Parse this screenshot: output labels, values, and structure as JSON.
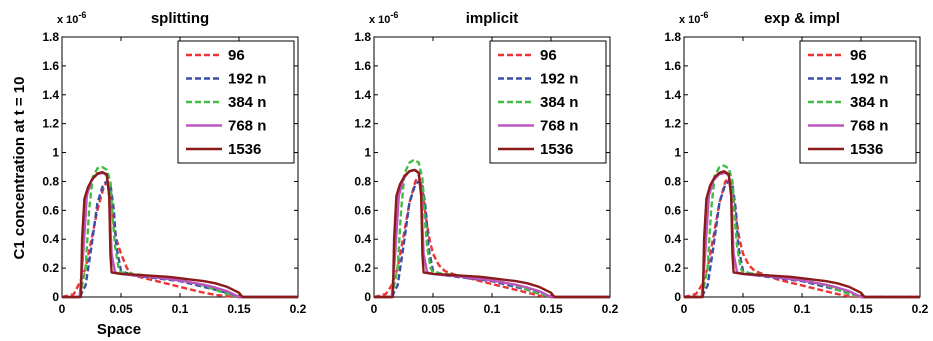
{
  "figure": {
    "ylabel": "C1 concentration at t = 10",
    "xlabel": "Space",
    "multiplier": "x 10",
    "multiplier_exp": "-6"
  },
  "chart_data": [
    {
      "type": "line",
      "title": "splitting",
      "xlabel": "Space",
      "ylabel": "C1 concentration at t = 10",
      "xlim": [
        0,
        0.2
      ],
      "ylim": [
        0,
        1.8
      ],
      "xticks": [
        "0",
        "0.05",
        "0.1",
        "0.15",
        "0.2"
      ],
      "yticks": [
        "0",
        "0.2",
        "0.4",
        "0.6",
        "0.8",
        "1",
        "1.2",
        "1.4",
        "1.6",
        "1.8"
      ],
      "legend_position": "top-right",
      "series": [
        {
          "name": "96",
          "color": "#ee3333",
          "dash": "dashed",
          "x": [
            0,
            0.01,
            0.015,
            0.02,
            0.025,
            0.03,
            0.035,
            0.038,
            0.041,
            0.043,
            0.046,
            0.05,
            0.055,
            0.06,
            0.07,
            0.08,
            0.09,
            0.1,
            0.11,
            0.12,
            0.13,
            0.14,
            0.15,
            0.2
          ],
          "y": [
            0,
            0.02,
            0.1,
            0.2,
            0.4,
            0.6,
            0.75,
            0.8,
            0.72,
            0.55,
            0.4,
            0.3,
            0.2,
            0.15,
            0.13,
            0.11,
            0.09,
            0.07,
            0.05,
            0.03,
            0.015,
            0.005,
            0,
            0
          ]
        },
        {
          "name": "192 n",
          "color": "#3a4fa8",
          "dash": "dashed",
          "x": [
            0,
            0.015,
            0.02,
            0.025,
            0.03,
            0.035,
            0.038,
            0.041,
            0.044,
            0.046,
            0.05,
            0.06,
            0.07,
            0.08,
            0.09,
            0.1,
            0.11,
            0.12,
            0.13,
            0.14,
            0.15,
            0.2
          ],
          "y": [
            0,
            0,
            0.08,
            0.35,
            0.65,
            0.78,
            0.8,
            0.78,
            0.6,
            0.35,
            0.18,
            0.15,
            0.14,
            0.13,
            0.12,
            0.11,
            0.09,
            0.07,
            0.05,
            0.03,
            0,
            0
          ]
        },
        {
          "name": "384 n",
          "color": "#44bb44",
          "dash": "dashed",
          "x": [
            0,
            0.015,
            0.02,
            0.023,
            0.026,
            0.03,
            0.034,
            0.038,
            0.041,
            0.043,
            0.045,
            0.048,
            0.05,
            0.06,
            0.07,
            0.08,
            0.09,
            0.1,
            0.11,
            0.12,
            0.13,
            0.14,
            0.15,
            0.2
          ],
          "y": [
            0,
            0,
            0.2,
            0.6,
            0.83,
            0.89,
            0.9,
            0.88,
            0.8,
            0.55,
            0.35,
            0.2,
            0.17,
            0.16,
            0.15,
            0.14,
            0.13,
            0.12,
            0.1,
            0.08,
            0.05,
            0.02,
            0,
            0
          ]
        },
        {
          "name": "768 n",
          "color": "#bb55bb",
          "dash": "solid",
          "x": [
            0,
            0.015,
            0.018,
            0.021,
            0.025,
            0.03,
            0.035,
            0.038,
            0.04,
            0.042,
            0.045,
            0.05,
            0.06,
            0.07,
            0.08,
            0.09,
            0.1,
            0.11,
            0.12,
            0.13,
            0.14,
            0.15,
            0.2
          ],
          "y": [
            0,
            0,
            0.3,
            0.7,
            0.81,
            0.85,
            0.86,
            0.84,
            0.7,
            0.3,
            0.17,
            0.16,
            0.15,
            0.145,
            0.135,
            0.125,
            0.115,
            0.1,
            0.085,
            0.065,
            0.04,
            0,
            0
          ]
        },
        {
          "name": "1536",
          "color": "#8b1a1a",
          "dash": "solid",
          "x": [
            0,
            0.016,
            0.017,
            0.019,
            0.022,
            0.026,
            0.03,
            0.034,
            0.038,
            0.04,
            0.041,
            0.042,
            0.05,
            0.06,
            0.07,
            0.08,
            0.09,
            0.1,
            0.11,
            0.12,
            0.13,
            0.14,
            0.15,
            0.153,
            0.2
          ],
          "y": [
            0,
            0,
            0.4,
            0.68,
            0.76,
            0.82,
            0.855,
            0.865,
            0.85,
            0.7,
            0.3,
            0.17,
            0.16,
            0.155,
            0.15,
            0.145,
            0.14,
            0.13,
            0.12,
            0.11,
            0.095,
            0.07,
            0.03,
            0,
            0
          ]
        }
      ]
    },
    {
      "type": "line",
      "title": "implicit",
      "xlim": [
        0,
        0.2
      ],
      "ylim": [
        0,
        1.8
      ],
      "xticks": [
        "0",
        "0.05",
        "0.1",
        "0.15",
        "0.2"
      ],
      "yticks": [
        "0",
        "0.2",
        "0.4",
        "0.6",
        "0.8",
        "1",
        "1.2",
        "1.4",
        "1.6",
        "1.8"
      ],
      "legend_position": "top-right",
      "series": [
        {
          "name": "96",
          "color": "#ee3333",
          "dash": "dashed",
          "x": [
            0,
            0.01,
            0.015,
            0.02,
            0.025,
            0.03,
            0.035,
            0.038,
            0.041,
            0.044,
            0.047,
            0.05,
            0.055,
            0.06,
            0.07,
            0.08,
            0.09,
            0.1,
            0.11,
            0.12,
            0.13,
            0.14,
            0.15,
            0.2
          ],
          "y": [
            0,
            0.02,
            0.08,
            0.2,
            0.42,
            0.65,
            0.8,
            0.84,
            0.75,
            0.55,
            0.4,
            0.3,
            0.22,
            0.18,
            0.15,
            0.13,
            0.11,
            0.09,
            0.07,
            0.05,
            0.03,
            0.01,
            0,
            0
          ]
        },
        {
          "name": "192 n",
          "color": "#3a4fa8",
          "dash": "dashed",
          "x": [
            0,
            0.015,
            0.02,
            0.025,
            0.03,
            0.035,
            0.038,
            0.041,
            0.044,
            0.046,
            0.05,
            0.06,
            0.07,
            0.08,
            0.09,
            0.1,
            0.11,
            0.12,
            0.13,
            0.14,
            0.15,
            0.2
          ],
          "y": [
            0,
            0,
            0.08,
            0.35,
            0.65,
            0.78,
            0.8,
            0.78,
            0.6,
            0.35,
            0.18,
            0.15,
            0.14,
            0.13,
            0.12,
            0.11,
            0.09,
            0.07,
            0.05,
            0.03,
            0,
            0
          ]
        },
        {
          "name": "384 n",
          "color": "#44bb44",
          "dash": "dashed",
          "x": [
            0,
            0.015,
            0.02,
            0.023,
            0.026,
            0.03,
            0.034,
            0.038,
            0.041,
            0.043,
            0.045,
            0.048,
            0.05,
            0.06,
            0.07,
            0.08,
            0.09,
            0.1,
            0.11,
            0.12,
            0.13,
            0.14,
            0.15,
            0.2
          ],
          "y": [
            0,
            0,
            0.2,
            0.6,
            0.86,
            0.93,
            0.95,
            0.93,
            0.82,
            0.55,
            0.35,
            0.2,
            0.17,
            0.16,
            0.15,
            0.14,
            0.13,
            0.12,
            0.1,
            0.08,
            0.05,
            0.02,
            0,
            0
          ]
        },
        {
          "name": "768 n",
          "color": "#bb55bb",
          "dash": "solid",
          "x": [
            0,
            0.015,
            0.018,
            0.021,
            0.025,
            0.03,
            0.035,
            0.038,
            0.04,
            0.042,
            0.045,
            0.05,
            0.06,
            0.07,
            0.08,
            0.09,
            0.1,
            0.11,
            0.12,
            0.13,
            0.14,
            0.15,
            0.2
          ],
          "y": [
            0,
            0,
            0.3,
            0.7,
            0.82,
            0.87,
            0.88,
            0.86,
            0.7,
            0.3,
            0.17,
            0.16,
            0.15,
            0.145,
            0.135,
            0.125,
            0.115,
            0.1,
            0.085,
            0.065,
            0.04,
            0,
            0
          ]
        },
        {
          "name": "1536",
          "color": "#8b1a1a",
          "dash": "solid",
          "x": [
            0,
            0.016,
            0.017,
            0.019,
            0.022,
            0.026,
            0.03,
            0.034,
            0.038,
            0.04,
            0.041,
            0.042,
            0.05,
            0.06,
            0.07,
            0.08,
            0.09,
            0.1,
            0.11,
            0.12,
            0.13,
            0.14,
            0.15,
            0.153,
            0.2
          ],
          "y": [
            0,
            0,
            0.4,
            0.7,
            0.78,
            0.84,
            0.87,
            0.88,
            0.86,
            0.7,
            0.3,
            0.17,
            0.16,
            0.155,
            0.15,
            0.145,
            0.14,
            0.13,
            0.12,
            0.11,
            0.095,
            0.07,
            0.03,
            0,
            0
          ]
        }
      ]
    },
    {
      "type": "line",
      "title": "exp & impl",
      "xlim": [
        0,
        0.2
      ],
      "ylim": [
        0,
        1.8
      ],
      "xticks": [
        "0",
        "0.05",
        "0.1",
        "0.15",
        "0.2"
      ],
      "yticks": [
        "0",
        "0.2",
        "0.4",
        "0.6",
        "0.8",
        "1",
        "1.2",
        "1.4",
        "1.6",
        "1.8"
      ],
      "legend_position": "top-right",
      "series": [
        {
          "name": "96",
          "color": "#ee3333",
          "dash": "dashed",
          "x": [
            0,
            0.01,
            0.015,
            0.02,
            0.025,
            0.03,
            0.035,
            0.038,
            0.041,
            0.044,
            0.047,
            0.05,
            0.055,
            0.06,
            0.07,
            0.08,
            0.09,
            0.1,
            0.11,
            0.12,
            0.13,
            0.14,
            0.15,
            0.2
          ],
          "y": [
            0,
            0.02,
            0.08,
            0.2,
            0.42,
            0.65,
            0.8,
            0.82,
            0.74,
            0.55,
            0.4,
            0.3,
            0.22,
            0.18,
            0.15,
            0.12,
            0.1,
            0.08,
            0.06,
            0.04,
            0.02,
            0.005,
            0,
            0
          ]
        },
        {
          "name": "192 n",
          "color": "#3a4fa8",
          "dash": "dashed",
          "x": [
            0,
            0.015,
            0.02,
            0.025,
            0.03,
            0.035,
            0.038,
            0.041,
            0.044,
            0.046,
            0.05,
            0.06,
            0.07,
            0.08,
            0.09,
            0.1,
            0.11,
            0.12,
            0.13,
            0.14,
            0.15,
            0.2
          ],
          "y": [
            0,
            0,
            0.08,
            0.35,
            0.65,
            0.78,
            0.8,
            0.78,
            0.6,
            0.35,
            0.18,
            0.15,
            0.14,
            0.13,
            0.12,
            0.11,
            0.09,
            0.07,
            0.05,
            0.03,
            0,
            0
          ]
        },
        {
          "name": "384 n",
          "color": "#44bb44",
          "dash": "dashed",
          "x": [
            0,
            0.015,
            0.02,
            0.023,
            0.026,
            0.03,
            0.034,
            0.038,
            0.041,
            0.043,
            0.045,
            0.048,
            0.05,
            0.06,
            0.07,
            0.08,
            0.09,
            0.1,
            0.11,
            0.12,
            0.13,
            0.14,
            0.15,
            0.2
          ],
          "y": [
            0,
            0,
            0.2,
            0.6,
            0.84,
            0.9,
            0.91,
            0.89,
            0.8,
            0.55,
            0.35,
            0.2,
            0.17,
            0.16,
            0.15,
            0.14,
            0.13,
            0.12,
            0.1,
            0.08,
            0.05,
            0.02,
            0,
            0
          ]
        },
        {
          "name": "768 n",
          "color": "#bb55bb",
          "dash": "solid",
          "x": [
            0,
            0.015,
            0.018,
            0.021,
            0.025,
            0.03,
            0.035,
            0.038,
            0.04,
            0.042,
            0.045,
            0.05,
            0.06,
            0.07,
            0.08,
            0.09,
            0.1,
            0.11,
            0.12,
            0.13,
            0.14,
            0.15,
            0.2
          ],
          "y": [
            0,
            0,
            0.3,
            0.7,
            0.81,
            0.85,
            0.86,
            0.84,
            0.7,
            0.3,
            0.17,
            0.16,
            0.15,
            0.145,
            0.135,
            0.125,
            0.115,
            0.1,
            0.085,
            0.065,
            0.04,
            0,
            0
          ]
        },
        {
          "name": "1536",
          "color": "#8b1a1a",
          "dash": "solid",
          "x": [
            0,
            0.016,
            0.017,
            0.019,
            0.022,
            0.026,
            0.03,
            0.034,
            0.038,
            0.04,
            0.041,
            0.042,
            0.05,
            0.06,
            0.07,
            0.08,
            0.09,
            0.1,
            0.11,
            0.12,
            0.13,
            0.14,
            0.15,
            0.153,
            0.2
          ],
          "y": [
            0,
            0,
            0.4,
            0.68,
            0.77,
            0.83,
            0.86,
            0.87,
            0.85,
            0.7,
            0.3,
            0.17,
            0.16,
            0.155,
            0.15,
            0.145,
            0.14,
            0.13,
            0.12,
            0.11,
            0.095,
            0.07,
            0.03,
            0,
            0
          ]
        }
      ]
    }
  ]
}
